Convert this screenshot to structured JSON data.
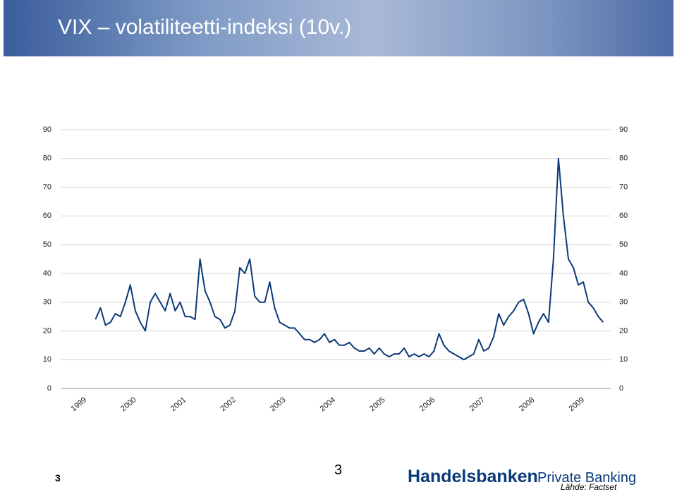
{
  "slide": {
    "title": "VIX – volatiliteetti-indeksi (10v.)",
    "page_left": "3",
    "page_center": "3",
    "brand": "Handelsbanken",
    "brand_suffix": "Private Banking",
    "source": "Lähde: Factset"
  },
  "chart_data": {
    "type": "line",
    "color": "#0b3a78",
    "grid": true,
    "x": [
      1999.2,
      1999.3,
      1999.4,
      1999.5,
      1999.6,
      1999.7,
      1999.8,
      1999.9,
      2000.0,
      2000.1,
      2000.2,
      2000.3,
      2000.4,
      2000.5,
      2000.6,
      2000.7,
      2000.8,
      2000.9,
      2001.0,
      2001.1,
      2001.2,
      2001.3,
      2001.4,
      2001.5,
      2001.6,
      2001.7,
      2001.8,
      2001.9,
      2002.0,
      2002.1,
      2002.2,
      2002.3,
      2002.4,
      2002.5,
      2002.6,
      2002.7,
      2002.8,
      2002.9,
      2003.0,
      2003.1,
      2003.2,
      2003.3,
      2003.4,
      2003.5,
      2003.6,
      2003.7,
      2003.8,
      2003.9,
      2004.0,
      2004.1,
      2004.2,
      2004.3,
      2004.4,
      2004.5,
      2004.6,
      2004.7,
      2004.8,
      2004.9,
      2005.0,
      2005.1,
      2005.2,
      2005.3,
      2005.4,
      2005.5,
      2005.6,
      2005.7,
      2005.8,
      2005.9,
      2006.0,
      2006.1,
      2006.2,
      2006.3,
      2006.4,
      2006.5,
      2006.6,
      2006.7,
      2006.8,
      2006.9,
      2007.0,
      2007.1,
      2007.2,
      2007.3,
      2007.4,
      2007.5,
      2007.6,
      2007.7,
      2007.8,
      2007.9,
      2008.0,
      2008.1,
      2008.2,
      2008.3,
      2008.4,
      2008.5,
      2008.6,
      2008.7,
      2008.8,
      2008.9,
      2009.0,
      2009.1,
      2009.2,
      2009.3,
      2009.4
    ],
    "values": [
      24,
      28,
      22,
      23,
      26,
      25,
      30,
      36,
      27,
      23,
      20,
      30,
      33,
      30,
      27,
      33,
      27,
      30,
      25,
      25,
      24,
      45,
      34,
      30,
      25,
      24,
      21,
      22,
      27,
      42,
      40,
      45,
      32,
      30,
      30,
      37,
      28,
      23,
      22,
      21,
      21,
      19,
      17,
      17,
      16,
      17,
      19,
      16,
      17,
      15,
      15,
      16,
      14,
      13,
      13,
      14,
      12,
      14,
      12,
      11,
      12,
      12,
      14,
      11,
      12,
      11,
      12,
      11,
      13,
      19,
      15,
      13,
      12,
      11,
      10,
      11,
      12,
      17,
      13,
      14,
      18,
      26,
      22,
      25,
      27,
      30,
      31,
      26,
      19,
      23,
      26,
      23,
      45,
      80,
      60,
      45,
      42,
      36,
      37,
      30,
      28,
      25,
      23
    ],
    "xlim": [
      1998.5,
      2009.55
    ],
    "xticks": [
      1999,
      2000,
      2001,
      2002,
      2003,
      2004,
      2005,
      2006,
      2007,
      2008,
      2009
    ],
    "ylim": [
      0,
      90
    ],
    "yticks": [
      0,
      10,
      20,
      30,
      40,
      50,
      60,
      70,
      80,
      90
    ]
  }
}
